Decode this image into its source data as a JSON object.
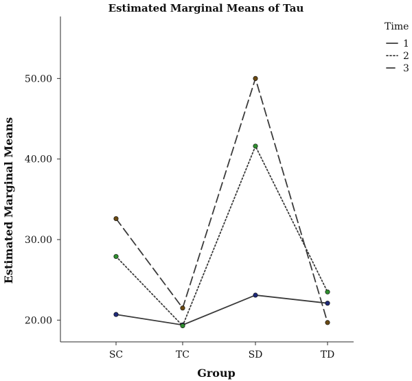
{
  "chart_data": {
    "type": "line",
    "title": "Estimated Marginal Means of Tau",
    "xlabel": "Group",
    "ylabel": "Estimated Marginal Means",
    "categories": [
      "SC",
      "TC",
      "SD",
      "TD"
    ],
    "yticks": [
      "20.00",
      "30.00",
      "40.00",
      "50.00"
    ],
    "ylim": [
      17.3,
      57.7
    ],
    "grid": false,
    "legend": {
      "title": "Time",
      "position": "top-right"
    },
    "series": [
      {
        "name": "1",
        "values": [
          20.7,
          19.4,
          23.1,
          22.1
        ],
        "line_style": "solid",
        "marker_color": "#1f2a7a"
      },
      {
        "name": "2",
        "values": [
          27.9,
          19.3,
          41.6,
          23.5
        ],
        "line_style": "dotted",
        "marker_color": "#2f8f2f"
      },
      {
        "name": "3",
        "values": [
          32.6,
          21.5,
          50.0,
          19.7
        ],
        "line_style": "dashed",
        "marker_color": "#6b4a12"
      }
    ],
    "colors": {
      "axis": "#2a2a2a",
      "line": "#3a3a3a",
      "text": "#111111",
      "background": "#ffffff"
    }
  }
}
